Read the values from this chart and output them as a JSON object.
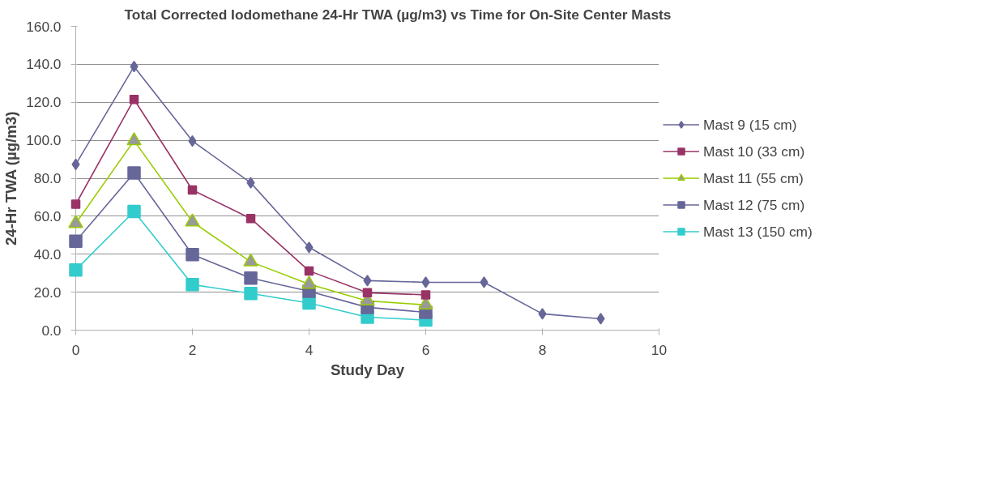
{
  "chart_data": {
    "type": "line",
    "title": "Total Corrected Iodomethane 24-Hr TWA (µg/m3)  vs Time for  On-Site Center Masts",
    "xlabel": "Study Day",
    "ylabel": "24-Hr TWA (µg/m3)",
    "x": [
      0,
      1,
      2,
      3,
      4,
      5,
      6,
      7,
      8,
      9
    ],
    "series": [
      {
        "name": "Mast 9 (15 cm)",
        "color": "#666699",
        "marker": "diamond",
        "values": [
          87.3,
          138.8,
          99.6,
          77.6,
          43.6,
          26.1,
          25.2,
          25.2,
          8.6,
          6.0
        ]
      },
      {
        "name": "Mast 10 (33 cm)",
        "color": "#993366",
        "marker": "square",
        "values": [
          66.3,
          121.5,
          73.8,
          58.8,
          31.2,
          19.7,
          18.6,
          null,
          null,
          null
        ]
      },
      {
        "name": "Mast 11 (55 cm)",
        "color": "#99cc00",
        "marker": "triangle",
        "values": [
          56.2,
          99.8,
          57.0,
          36.0,
          24.2,
          15.4,
          13.3,
          null,
          null,
          null
        ]
      },
      {
        "name": "Mast 12 (75 cm)",
        "color": "#666699",
        "marker": "square",
        "values": [
          46.8,
          82.8,
          39.8,
          27.4,
          20.5,
          12.0,
          9.4,
          null,
          null,
          null
        ]
      },
      {
        "name": "Mast 13 (150 cm)",
        "color": "#33cccc",
        "marker": "square",
        "values": [
          31.7,
          62.5,
          24.0,
          19.3,
          14.3,
          6.8,
          5.3,
          null,
          null,
          null
        ]
      }
    ],
    "xlim": [
      0,
      10
    ],
    "xticks": [
      0,
      2,
      4,
      6,
      8,
      10
    ],
    "ylim": [
      0,
      160
    ],
    "yticks": [
      {
        "value": 0,
        "label": "0.0"
      },
      {
        "value": 20,
        "label": "20.0"
      },
      {
        "value": 40,
        "label": "40.0"
      },
      {
        "value": 60,
        "label": "60.0"
      },
      {
        "value": 80,
        "label": "80.0"
      },
      {
        "value": 100,
        "label": "100.0"
      },
      {
        "value": 120,
        "label": "120.0"
      },
      {
        "value": 140,
        "label": "140.0"
      },
      {
        "value": 160,
        "label": "160.0"
      }
    ],
    "grid": "y",
    "legend": "right"
  }
}
